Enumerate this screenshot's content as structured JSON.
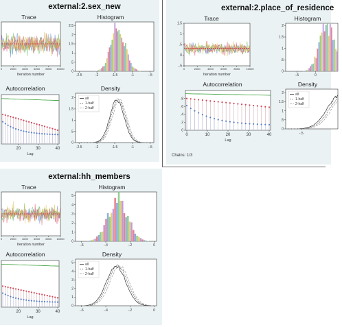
{
  "panels": [
    {
      "id": "p1",
      "title": "external:2.sex_new",
      "chains_note": "",
      "trace": {
        "title": "Trace",
        "xlabel": "Iteration number",
        "xticks": [
          "0",
          "2000",
          "4000",
          "6000",
          "8000",
          "10000"
        ],
        "yticks": [],
        "center": -1.4,
        "spread": 0.6,
        "ylim": [
          -2.4,
          -0.4
        ]
      },
      "histogram": {
        "title": "Histogram",
        "xticks": [
          "-2.5",
          "-2",
          "-1.5",
          "-1",
          "-.5"
        ],
        "yticks": [
          "0",
          ".5",
          "1",
          "1.5",
          "2",
          "2.5"
        ],
        "xlim": [
          -2.6,
          -0.4
        ],
        "ylim": [
          0,
          2.7
        ],
        "center": -1.4,
        "sd": 0.2,
        "peak": 2.5
      },
      "autocorrelation": {
        "title": "Autocorrelation",
        "xlabel": "Lag",
        "xticks": [
          "20",
          "30",
          "40"
        ],
        "yticks": [],
        "lag_start": 12,
        "lag_end": 40,
        "series_start": [
          0.6,
          0.45
        ],
        "series_end": [
          0.28,
          0.18
        ]
      },
      "density": {
        "title": "Density",
        "legend": [
          "all",
          "1-half",
          "2-half"
        ],
        "xticks": [
          "-2.5",
          "-2",
          "-1.5",
          "-1",
          "-.5"
        ],
        "yticks": [
          "0",
          ".5",
          "1",
          "1.5",
          "2"
        ],
        "xlim": [
          -2.6,
          -0.4
        ],
        "ylim": [
          0,
          2.2
        ],
        "center": -1.4,
        "sd": 0.2,
        "peak": 1.9
      }
    },
    {
      "id": "p2",
      "title": "external:2.place_of_residence",
      "chains_note": "Chains: 1/3",
      "trace": {
        "title": "Trace",
        "xlabel": "Iteration number",
        "xticks": [
          "0",
          "2000",
          "4000",
          "6000",
          "8000",
          "10000"
        ],
        "yticks": [
          "-.5",
          "0",
          ".5",
          "1",
          "1.5"
        ],
        "center": 0.3,
        "spread": 0.4,
        "ylim": [
          -0.6,
          1.6
        ]
      },
      "histogram": {
        "title": "Histogram",
        "xticks": [
          "-.5",
          "0"
        ],
        "yticks": [
          "0",
          ".5",
          "1",
          "1.5",
          "2"
        ],
        "xlim": [
          -0.8,
          0.6
        ],
        "ylim": [
          0,
          2.1
        ],
        "center": 0.3,
        "sd": 0.2,
        "peak": 2.0
      },
      "autocorrelation": {
        "title": "Autocorrelation",
        "xlabel": "Lag",
        "xticks": [
          "0",
          "10",
          "20",
          "30",
          "40"
        ],
        "yticks": [
          "0",
          ".2",
          ".4",
          ".6",
          ".8"
        ],
        "lag_start": 0,
        "lag_end": 40,
        "series_start": [
          0.8,
          0.62
        ],
        "series_end": [
          0.58,
          0.12
        ]
      },
      "density": {
        "title": "Density",
        "legend": [
          "all",
          "1-half",
          "2-half"
        ],
        "xticks": [
          "-.5"
        ],
        "yticks": [
          "0",
          ".5",
          "1",
          "1.5",
          "2"
        ],
        "xlim": [
          -0.8,
          0.2
        ],
        "ylim": [
          0,
          2.2
        ],
        "center": 0.3,
        "sd": 0.25,
        "peak": 1.9
      }
    },
    {
      "id": "p3",
      "title": "external:hh_members",
      "chains_note": "",
      "trace": {
        "title": "Trace",
        "xlabel": "Iteration number",
        "xticks": [
          "0",
          "2000",
          "4000",
          "6000",
          "8000",
          "10000"
        ],
        "yticks": [],
        "center": -0.3,
        "spread": 0.2,
        "ylim": [
          -0.7,
          0.1
        ]
      },
      "histogram": {
        "title": "Histogram",
        "xticks": [
          "-.6",
          "-.4",
          "-.2",
          "0"
        ],
        "yticks": [
          "0",
          "1",
          "2",
          "3",
          "4",
          "5"
        ],
        "xlim": [
          -0.65,
          0.02
        ],
        "ylim": [
          0,
          5.4
        ],
        "center": -0.3,
        "sd": 0.08,
        "peak": 5.0
      },
      "autocorrelation": {
        "title": "Autocorrelation",
        "xlabel": "Lag",
        "xticks": [
          "20",
          "30",
          "40"
        ],
        "yticks": [],
        "lag_start": 12,
        "lag_end": 40,
        "series_start": [
          0.45,
          0.3
        ],
        "series_end": [
          0.2,
          0.1
        ]
      },
      "density": {
        "title": "Density",
        "legend": [
          "all",
          "1-half",
          "2-half"
        ],
        "xticks": [
          "-.6",
          "-.4",
          "-.2",
          "0"
        ],
        "yticks": [
          "0",
          "1",
          "2",
          "3",
          "4",
          "5"
        ],
        "xlim": [
          -0.65,
          0.02
        ],
        "ylim": [
          0,
          5.4
        ],
        "center": -0.3,
        "sd": 0.08,
        "peak": 4.6
      }
    }
  ],
  "colors": {
    "panel_bg": "#eaf2f4",
    "bar_colors": [
      "#e05a6a",
      "#6a8fd8",
      "#6cc06c",
      "#d9c04a",
      "#b07ad0"
    ],
    "trace_colors": [
      "#6cc06c",
      "#6a8fd8",
      "#e05a6a",
      "#d9c04a"
    ],
    "acf_colors": [
      "#5a7fc8",
      "#d04a5a",
      "#4aa84a"
    ],
    "density_lines": [
      "#333333",
      "#666666",
      "#999999"
    ]
  }
}
